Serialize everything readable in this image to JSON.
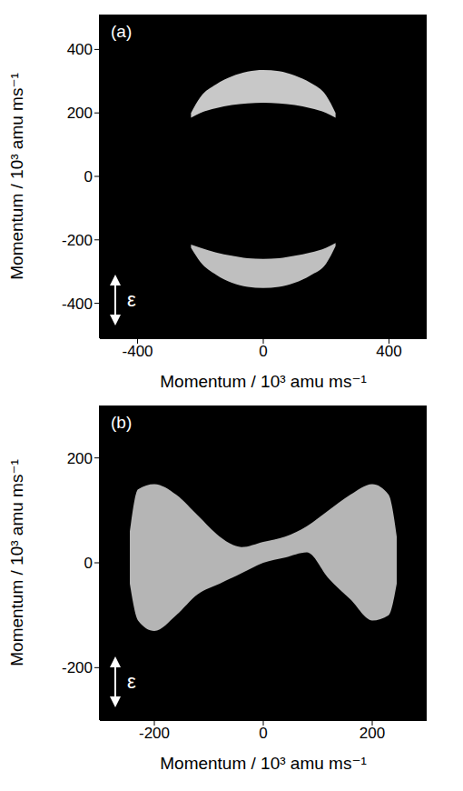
{
  "chart_data": [
    {
      "type": "area",
      "title": "(a)",
      "annotation": "ε",
      "x_label": "Momentum / 10³ amu ms⁻¹",
      "y_label": "Momentum / 10³ amu ms⁻¹",
      "xlim": [
        -520,
        520
      ],
      "ylim": [
        -510,
        510
      ],
      "xticks": [
        -400,
        0,
        400
      ],
      "yticks": [
        -400,
        -200,
        0,
        200,
        400
      ],
      "grid": false,
      "bands": [
        {
          "x": [
            -230,
            -200,
            -150,
            -100,
            -50,
            0,
            50,
            100,
            150,
            200,
            230
          ],
          "low": [
            185,
            200,
            215,
            225,
            230,
            232,
            230,
            225,
            215,
            200,
            185
          ],
          "high": [
            200,
            250,
            290,
            315,
            330,
            335,
            332,
            318,
            295,
            255,
            200
          ],
          "color": "#d9d9d9"
        },
        {
          "x": [
            -230,
            -200,
            -150,
            -100,
            -50,
            0,
            50,
            100,
            150,
            200,
            230
          ],
          "low": [
            -225,
            -270,
            -310,
            -335,
            -348,
            -352,
            -348,
            -335,
            -312,
            -275,
            -220
          ],
          "high": [
            -215,
            -225,
            -240,
            -250,
            -258,
            -260,
            -258,
            -250,
            -240,
            -225,
            -210
          ],
          "color": "#cfcfcf"
        }
      ]
    },
    {
      "type": "area",
      "title": "(b)",
      "annotation": "ε",
      "x_label": "Momentum / 10³ amu ms⁻¹",
      "y_label": "Momentum / 10³ amu ms⁻¹",
      "xlim": [
        -300,
        300
      ],
      "ylim": [
        -300,
        300
      ],
      "xticks": [
        -200,
        0,
        200
      ],
      "yticks": [
        -200,
        0,
        200
      ],
      "grid": false,
      "bands": [
        {
          "x": [
            -245,
            -230,
            -200,
            -160,
            -120,
            -80,
            -40,
            0,
            40,
            80,
            120,
            160,
            200,
            230,
            245
          ],
          "low": [
            -40,
            -110,
            -130,
            -100,
            -60,
            -40,
            -20,
            0,
            10,
            20,
            -30,
            -70,
            -110,
            -100,
            -40
          ],
          "high": [
            60,
            140,
            150,
            130,
            90,
            50,
            30,
            40,
            50,
            70,
            100,
            130,
            150,
            130,
            50
          ],
          "color": "#c4c4c4"
        }
      ]
    }
  ]
}
